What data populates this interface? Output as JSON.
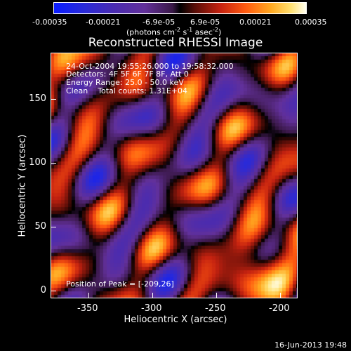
{
  "colorbar": {
    "ticks": [
      "-0.00035",
      "-0.00021",
      "-6.9e-05",
      "6.9e-05",
      "0.00021",
      "0.00035"
    ],
    "units_text": "(photons cm",
    "units_exp1": "-2",
    "units_mid": " s",
    "units_exp2": "-1",
    "units_tail": " asec",
    "units_exp3": "-2",
    "units_close": ")"
  },
  "plot": {
    "title": "Reconstructed RHESSI Image",
    "info_time": "24-Oct-2004 19:55:26.000 to 19:58:32.000",
    "info_detectors": "Detectors: 4F 5F 6F 7F 8F, Att 0",
    "info_energy": "Energy Range: 25.0 - 50.0 keV",
    "info_clean": "Clean    Total counts: 1.31E+04",
    "peak": "Position of Peak = [-209,26]",
    "xlabel": "Heliocentric X (arcsec)",
    "ylabel": "Heliocentric Y (arcsec)",
    "xticks": [
      "-350",
      "-300",
      "-250",
      "-200"
    ],
    "yticks": [
      "150",
      "100",
      "50",
      "0"
    ]
  },
  "footer": {
    "date": "16-Jun-2013 19:48"
  },
  "chart_data": {
    "type": "heatmap",
    "title": "Reconstructed RHESSI Image",
    "xlabel": "Heliocentric X (arcsec)",
    "ylabel": "Heliocentric Y (arcsec)",
    "xlim": [
      -377,
      -186
    ],
    "ylim": [
      -8,
      181
    ],
    "colorbar_range": [
      -0.00035,
      0.00035
    ],
    "peak_position": [
      -209,
      26
    ]
  }
}
